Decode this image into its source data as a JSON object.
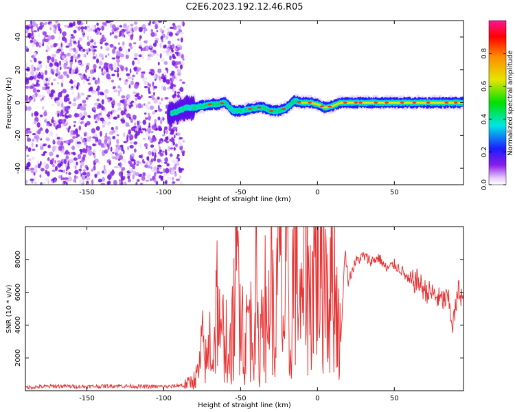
{
  "title": "C2E6.2023.192.12.46.R05",
  "colors": {
    "snr_line": "#e83434",
    "scatter_low": "#7a12e6",
    "background": "#ffffff"
  },
  "chart_data": [
    {
      "type": "heatmap",
      "title": "C2E6.2023.192.12.46.R05",
      "xlabel": "Height of straight line (km)",
      "ylabel": "Frequency (Hz)",
      "xlim": [
        -190,
        95
      ],
      "ylim": [
        -50,
        50
      ],
      "xticks": [
        -150,
        -100,
        -50,
        0,
        50
      ],
      "yticks": [
        -40,
        -20,
        0,
        20,
        40
      ],
      "xtick_labels": [
        "-150",
        "-100",
        "-50",
        "0",
        "50"
      ],
      "ytick_labels": [
        "-40",
        "-20",
        "0",
        "20",
        "40"
      ],
      "noise_region_x": [
        -190,
        -87
      ],
      "signal_ridge": {
        "x": [
          -97,
          -90,
          -85,
          -80,
          -75,
          -70,
          -65,
          -60,
          -55,
          -50,
          -45,
          -40,
          -35,
          -30,
          -25,
          -20,
          -15,
          -10,
          -5,
          0,
          5,
          10,
          15,
          20,
          30,
          40,
          50,
          60,
          70,
          80,
          90,
          95
        ],
        "freq": [
          -7,
          -5,
          -3,
          -3,
          -2,
          -1,
          -1,
          0,
          -5,
          -5,
          -4,
          -3,
          -3,
          -5,
          -5,
          -3,
          1,
          0,
          0,
          -1,
          -3,
          -2,
          0,
          0,
          0,
          0,
          0,
          0,
          0,
          0,
          0,
          0
        ]
      },
      "colorbar": {
        "label": "Normalized spectral amplitude",
        "range": [
          0,
          1
        ],
        "ticks": [
          0.0,
          0.2,
          0.4,
          0.6,
          0.8
        ],
        "tick_labels": [
          "0.0",
          "0.2",
          "0.4",
          "0.6",
          "0.8"
        ],
        "colormap": "rainbow (white-violet-blue-cyan-green-yellow-orange-red-magenta)"
      }
    },
    {
      "type": "line",
      "xlabel": "Height of straight line (km)",
      "ylabel": "SNR (10 * v/v)",
      "xlim": [
        -190,
        95
      ],
      "ylim": [
        0,
        10000
      ],
      "xticks": [
        -150,
        -100,
        -50,
        0,
        50
      ],
      "yticks": [
        2000,
        4000,
        6000,
        8000
      ],
      "xtick_labels": [
        "-150",
        "-100",
        "-50",
        "0",
        "50"
      ],
      "ytick_labels": [
        "2000",
        "4000",
        "6000",
        "8000"
      ],
      "series": [
        {
          "x": [
            -190,
            -170,
            -150,
            -130,
            -110,
            -95,
            -85,
            -80,
            -77,
            -75,
            -72,
            -70,
            -68,
            -65,
            -63,
            -60,
            -58,
            -55,
            -53,
            -50,
            -48,
            -45,
            -42,
            -40,
            -38,
            -35,
            -33,
            -30,
            -28,
            -25,
            -22,
            -20,
            -18,
            -15,
            -13,
            -10,
            -8,
            -5,
            -3,
            0,
            3,
            5,
            8,
            10,
            13,
            15,
            18,
            20,
            25,
            30,
            35,
            40,
            45,
            50,
            55,
            60,
            65,
            70,
            75,
            80,
            85,
            88,
            92,
            95
          ],
          "y": [
            200,
            280,
            250,
            300,
            250,
            250,
            400,
            700,
            1200,
            2800,
            1500,
            3200,
            1800,
            6200,
            2400,
            4400,
            1200,
            3700,
            6400,
            9100,
            1600,
            4800,
            3200,
            6800,
            1000,
            7800,
            2600,
            8000,
            1900,
            8600,
            3300,
            7400,
            1300,
            9300,
            6800,
            4200,
            9800,
            5300,
            7200,
            8400,
            6300,
            8800,
            5100,
            8700,
            4800,
            2700,
            8600,
            6700,
            7900,
            8200,
            7900,
            8100,
            7400,
            7700,
            7300,
            6600,
            6700,
            6100,
            5900,
            5500,
            5600,
            4000,
            6200,
            5500
          ]
        }
      ]
    }
  ]
}
